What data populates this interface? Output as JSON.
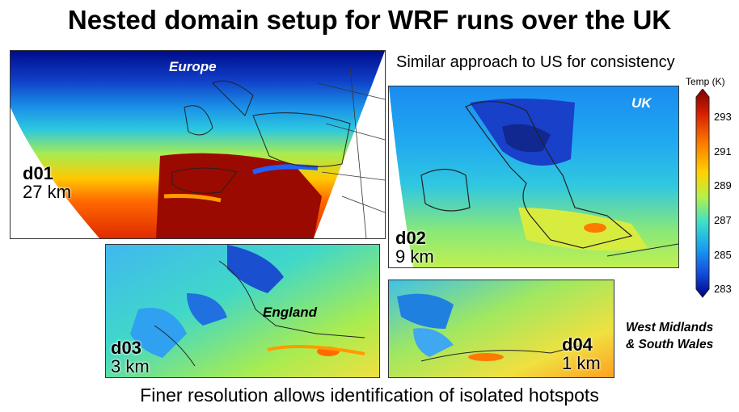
{
  "title": "Nested domain setup for WRF runs over the UK",
  "subtitle": "Similar approach to US for consistency",
  "panels": {
    "d01": {
      "name": "d01",
      "res": "27 km",
      "region": "Europe"
    },
    "d02": {
      "name": "d02",
      "res": "9 km",
      "region": "UK"
    },
    "d03": {
      "name": "d03",
      "res": "3 km",
      "region": "England"
    },
    "d04": {
      "name": "d04",
      "res": "1 km",
      "region_line1": "West Midlands",
      "region_line2": "& South Wales"
    }
  },
  "colorbar": {
    "title": "Temp (K)",
    "ticks": [
      "293",
      "291",
      "289",
      "287",
      "285",
      "283"
    ],
    "colors": [
      "#7f0000",
      "#d62000",
      "#ff7a00",
      "#ffd200",
      "#b4f04a",
      "#3ce0c8",
      "#1aa0f0",
      "#1450e0",
      "#000080"
    ]
  },
  "footer": "Finer resolution allows identification of isolated hotspots"
}
